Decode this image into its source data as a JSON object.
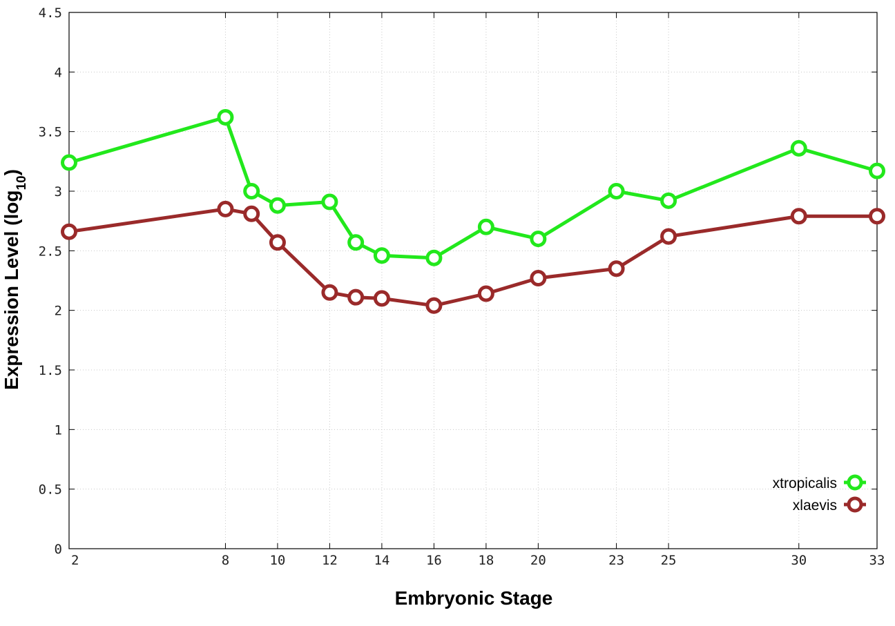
{
  "chart_data": {
    "type": "line",
    "xlabel": "Embryonic Stage",
    "ylabel_main": "Expression Level (log",
    "ylabel_sub": "10",
    "ylabel_close": ")",
    "x_ticks": [
      2,
      8,
      10,
      12,
      14,
      16,
      18,
      20,
      23,
      25,
      30,
      33
    ],
    "y_ticks": [
      "0",
      "0.5",
      "1",
      "1.5",
      "2",
      "2.5",
      "3",
      "3.5",
      "4",
      "4.5"
    ],
    "xlim": [
      2,
      33
    ],
    "ylim": [
      0,
      4.5
    ],
    "grid": true,
    "legend_position": "bottom-right",
    "series": [
      {
        "name": "xtropicalis",
        "color": "#22e81c",
        "x": [
          2,
          8,
          9,
          10,
          12,
          13,
          14,
          16,
          18,
          20,
          23,
          25,
          30,
          33
        ],
        "y": [
          3.24,
          3.62,
          3.0,
          2.88,
          2.91,
          2.57,
          2.46,
          2.44,
          2.7,
          2.6,
          3.0,
          2.92,
          3.36,
          3.17
        ]
      },
      {
        "name": "xlaevis",
        "color": "#9a2a2a",
        "x": [
          2,
          8,
          9,
          10,
          12,
          13,
          14,
          16,
          18,
          20,
          23,
          25,
          30,
          33
        ],
        "y": [
          2.66,
          2.85,
          2.81,
          2.57,
          2.15,
          2.11,
          2.1,
          2.04,
          2.14,
          2.27,
          2.35,
          2.62,
          2.79,
          2.79
        ]
      }
    ]
  }
}
